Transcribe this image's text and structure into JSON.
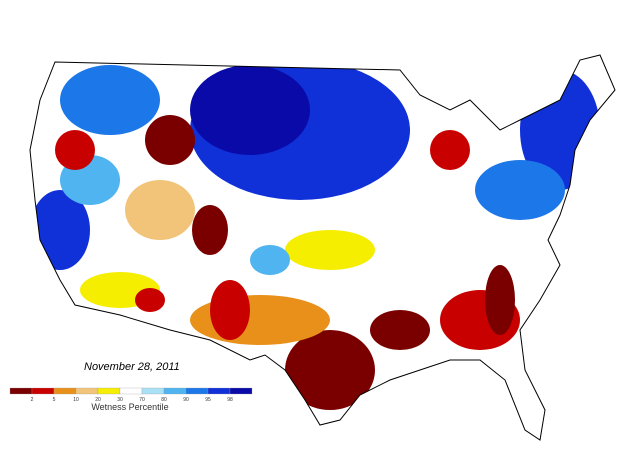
{
  "date": "November 28, 2011",
  "legend": {
    "title": "Wetness Percentile",
    "ticks": [
      2,
      5,
      10,
      20,
      30,
      70,
      80,
      90,
      95,
      98
    ],
    "colors": [
      "#7a0000",
      "#c80000",
      "#e8901a",
      "#f2c47a",
      "#f6ee00",
      "#ffffff",
      "#a8e0f6",
      "#50b4f0",
      "#1c78e8",
      "#1030d8",
      "#0a0aa8"
    ]
  }
}
